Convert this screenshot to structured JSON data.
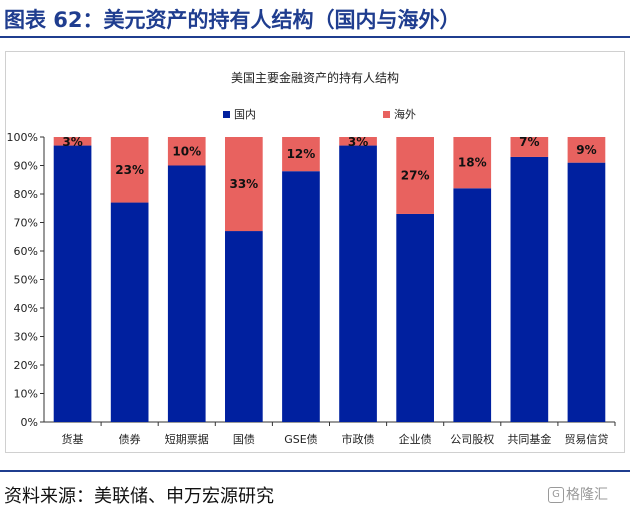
{
  "page": {
    "title": "图表 62：美元资产的持有人结构（国内与海外）",
    "source": "资料来源：美联储、申万宏源研究",
    "watermark_text": "格隆汇",
    "watermark_logo": "G"
  },
  "chart_data": {
    "type": "bar",
    "stacked": true,
    "title": "美国主要金融资产的持有人结构",
    "categories": [
      "货基",
      "债券",
      "短期票据",
      "国债",
      "GSE债",
      "市政债",
      "企业债",
      "公司股权",
      "共同基金",
      "贸易信贷"
    ],
    "series": [
      {
        "name": "国内",
        "color": "#00209f",
        "values": [
          97,
          77,
          90,
          67,
          88,
          97,
          73,
          82,
          93,
          91
        ]
      },
      {
        "name": "海外",
        "color": "#e8625f",
        "values": [
          3,
          23,
          10,
          33,
          12,
          3,
          27,
          18,
          7,
          9
        ]
      }
    ],
    "data_labels": [
      "3%",
      "23%",
      "10%",
      "33%",
      "12%",
      "3%",
      "27%",
      "18%",
      "7%",
      "9%"
    ],
    "yticks": [
      "0%",
      "10%",
      "20%",
      "30%",
      "40%",
      "50%",
      "60%",
      "70%",
      "80%",
      "90%",
      "100%"
    ],
    "ylim": [
      0,
      100
    ],
    "grid": false,
    "legend_position": "top"
  }
}
